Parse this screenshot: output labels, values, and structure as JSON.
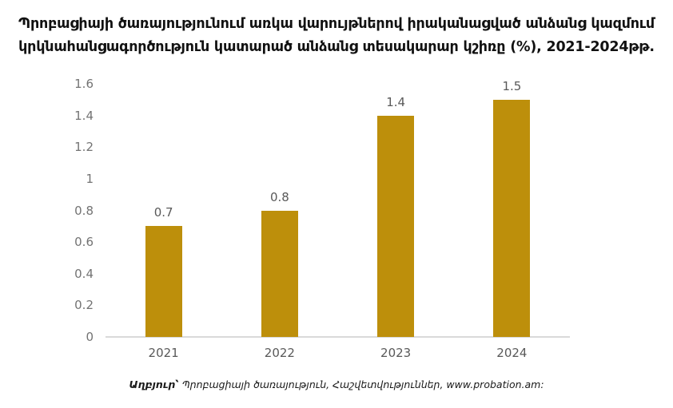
{
  "chart_data": {
    "type": "bar",
    "title": "Պրոբացիայի ծառայությունում առկա վարույթներով իրականացված անձանց կազմում կրկնահանցագործություն կատարած անձանց տեսակարար կշիռը (%), 2021-2024թթ.",
    "title_lines": [
      "Պրոբացիայի ծառայությունում առկա վարույթներով իրականացված անձանց կազմում",
      "կրկնահանցագործություն կատարած անձանց տեսակարար կշիռը (%), 2021-2024թթ."
    ],
    "categories": [
      "2021",
      "2022",
      "2023",
      "2024"
    ],
    "values": [
      0.7,
      0.8,
      1.4,
      1.5
    ],
    "value_labels": [
      "0.7",
      "0.8",
      "1.4",
      "1.5"
    ],
    "y_ticks": [
      "0",
      "0.2",
      "0.4",
      "0.6",
      "0.8",
      "1",
      "1.2",
      "1.4",
      "1.6"
    ],
    "ylim": [
      0,
      1.6
    ],
    "xlabel": "",
    "ylabel": "",
    "grid": false,
    "legend": "none",
    "bar_color": "#BD8F0B",
    "axis_line_color": "#D9D9D9",
    "tick_label_color": "#737373",
    "value_label_color": "#595959",
    "x_label_color": "#595959"
  },
  "source_note": {
    "prefix": "Աղբյուր՝",
    "text": " Պրոբացիայի ծառայություն, Հաշվետվություններ, www.probation.am:"
  }
}
